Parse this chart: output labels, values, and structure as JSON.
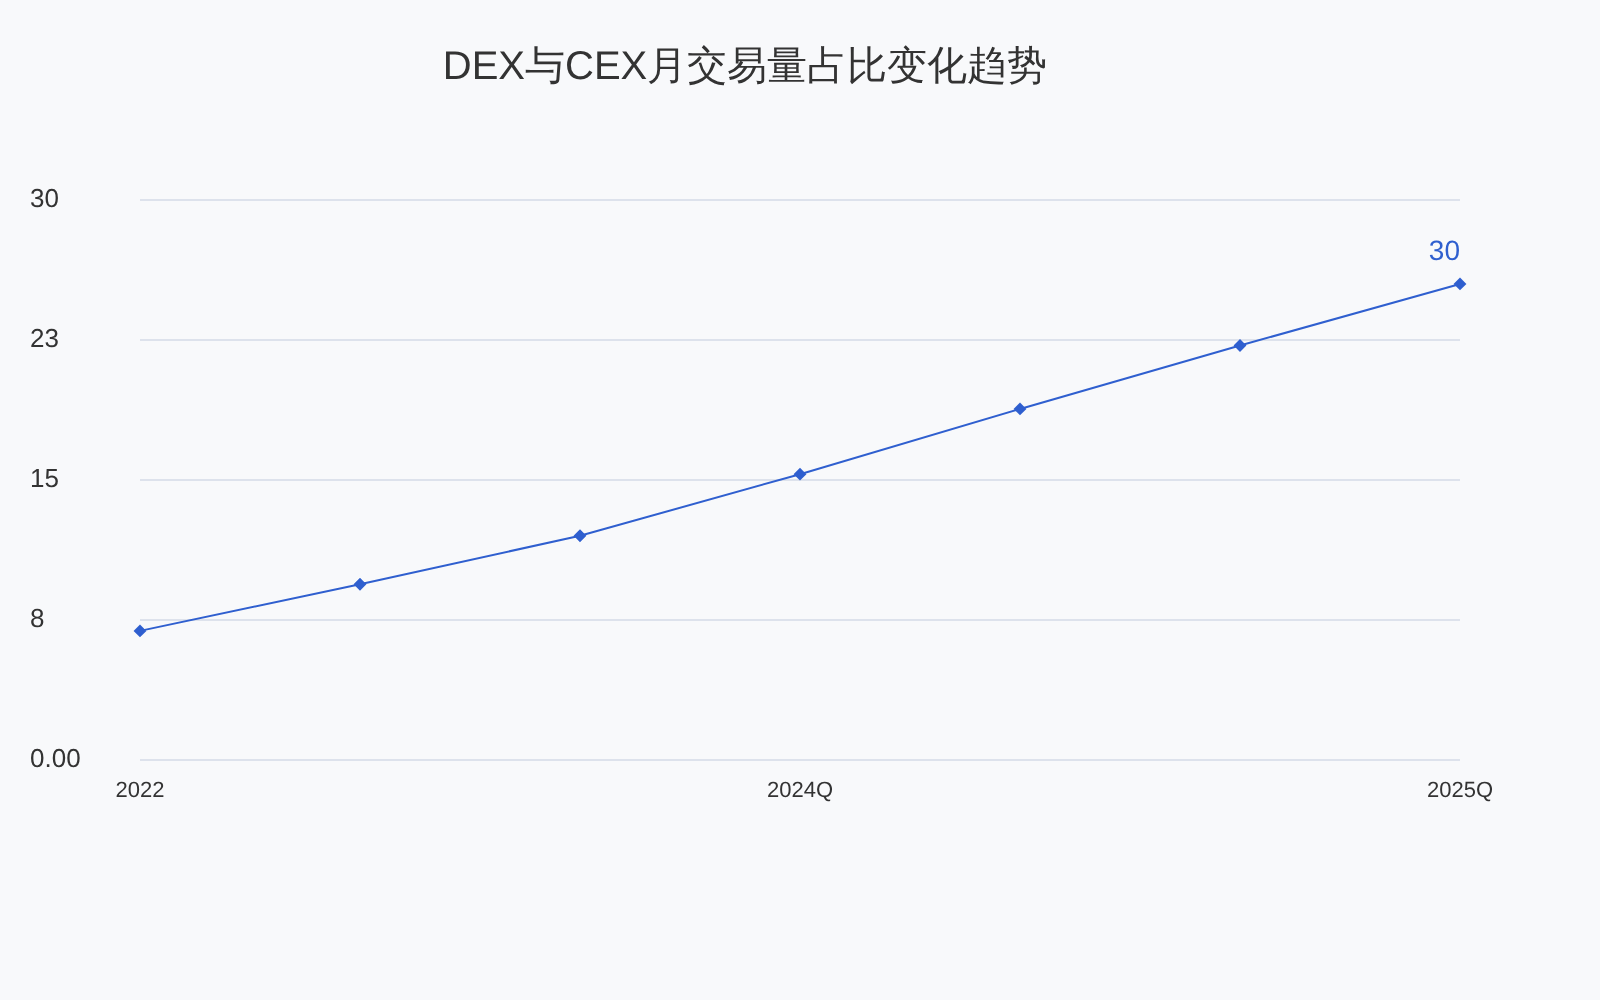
{
  "chart_data": {
    "type": "line",
    "title": "DEX与CEX月交易量占比变化趋势",
    "categories": [
      "2022",
      null,
      null,
      "2024Q",
      null,
      null,
      "2025Q"
    ],
    "series": [
      {
        "color": "#2f5fcf",
        "values": [
          6.9,
          9.4,
          12.0,
          15.3,
          18.8,
          22.2,
          25.5
        ]
      }
    ],
    "annotations": [
      {
        "text": "30",
        "x": "2025Q",
        "y": 25.5
      }
    ],
    "ylim": [
      0,
      30
    ],
    "yticks": [
      {
        "value": 0,
        "label": "0.00"
      },
      {
        "value": 7.5,
        "label": "8"
      },
      15,
      {
        "value": 22.5,
        "label": "23"
      },
      30
    ],
    "grid": "y",
    "legend": false,
    "marker": "diamond",
    "line_style": "solid"
  }
}
